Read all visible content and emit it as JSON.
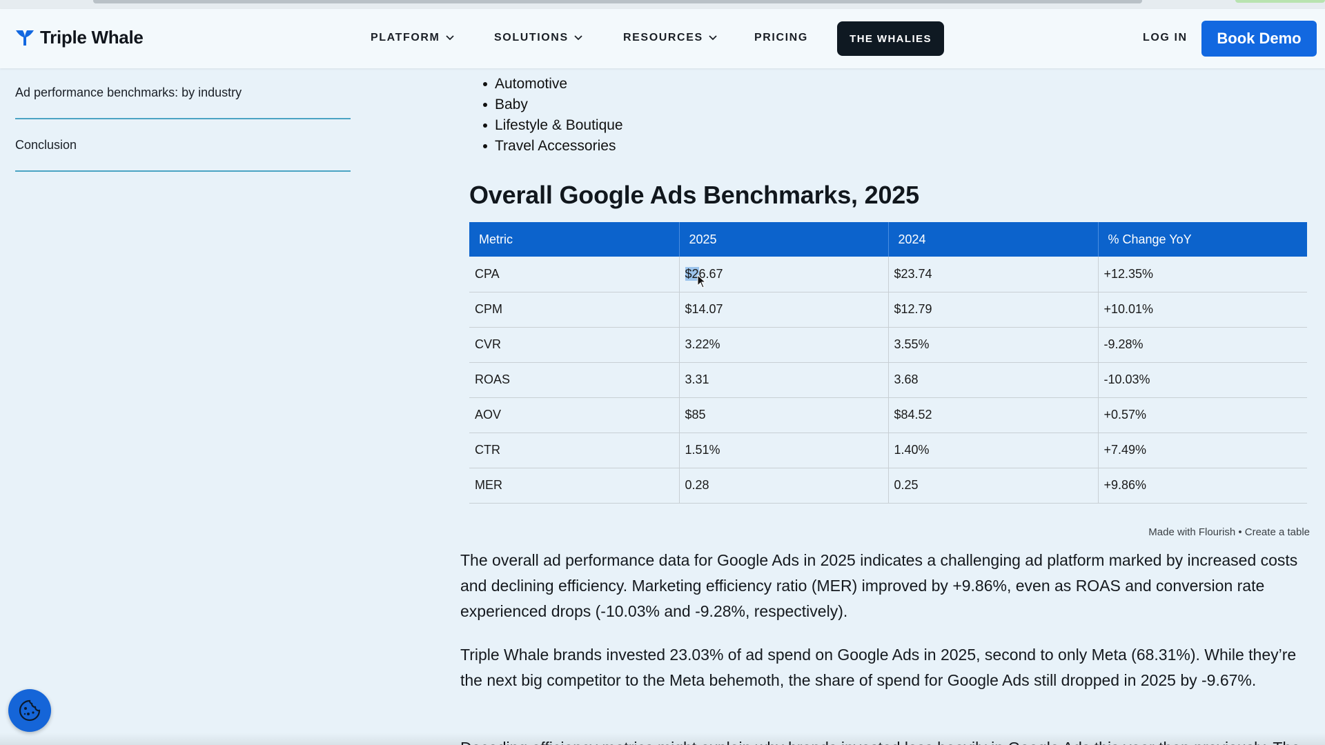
{
  "brand": {
    "name": "Triple Whale"
  },
  "nav": {
    "platform": "PLATFORM",
    "solutions": "SOLUTIONS",
    "resources": "RESOURCES",
    "pricing": "PRICING",
    "whalies": "THE WHALIES",
    "login": "LOG IN",
    "book_demo": "Book Demo"
  },
  "toc": {
    "items": [
      "Ad performance benchmarks: by industry",
      "Conclusion"
    ]
  },
  "bullets": [
    "Automotive",
    "Baby",
    "Lifestyle & Boutique",
    "Travel Accessories"
  ],
  "section_title": "Overall Google Ads Benchmarks, 2025",
  "table": {
    "headers": [
      "Metric",
      "2025",
      "2024",
      "% Change YoY"
    ],
    "rows": [
      [
        "CPA",
        "$26.67",
        "$23.74",
        "+12.35%"
      ],
      [
        "CPM",
        "$14.07",
        "$12.79",
        "+10.01%"
      ],
      [
        "CVR",
        "3.22%",
        "3.55%",
        "-9.28%"
      ],
      [
        "ROAS",
        "3.31",
        "3.68",
        "-10.03%"
      ],
      [
        "AOV",
        "$85",
        "$84.52",
        "+0.57%"
      ],
      [
        "CTR",
        "1.51%",
        "1.40%",
        "+7.49%"
      ],
      [
        "MER",
        "0.28",
        "0.25",
        "+9.86%"
      ]
    ],
    "selected_text": "$2",
    "selected_rest": "6.67"
  },
  "credit": "Made with Flourish • Create a table",
  "paragraphs": [
    "The overall ad performance data for Google Ads in 2025 indicates a challenging ad platform marked by increased costs and declining efficiency. Marketing efficiency ratio (MER) improved by +9.86%, even as ROAS and conversion rate experienced drops (-10.03% and -9.28%, respectively).",
    "Triple Whale brands invested 23.03% of ad spend on Google Ads in 2025, second to only Meta (68.31%). While they’re the next big competitor to the Meta behemoth, the share of spend for Google Ads still dropped in 2025 by -9.67%."
  ],
  "cut_paragraph": "Decoding efficiency metrics might explain why brands invested less heavily in Google Ads this year than previously. The",
  "colors": {
    "accent": "#0c63cc",
    "button": "#1268e0",
    "dark": "#0f1922"
  },
  "icons": {
    "cookie": "cookie-icon",
    "logo": "whale-tail-icon"
  }
}
